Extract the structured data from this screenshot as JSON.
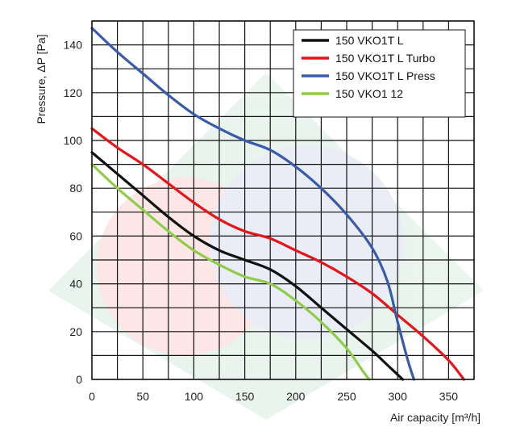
{
  "chart_data": {
    "type": "line",
    "title": "",
    "xlabel": "Air capacity [m³/h]",
    "ylabel": "Pressure, ΔP [Pa]",
    "xlim": [
      0,
      375
    ],
    "ylim": [
      0,
      150
    ],
    "x_ticks": [
      0,
      50,
      100,
      150,
      200,
      250,
      300,
      350
    ],
    "y_ticks": [
      0,
      20,
      40,
      60,
      80,
      100,
      120,
      140
    ],
    "grid": true,
    "legend_position": "top-right",
    "series": [
      {
        "name": "150 VKO1T L",
        "color": "#111111",
        "points": [
          [
            0,
            95
          ],
          [
            25,
            86
          ],
          [
            50,
            77
          ],
          [
            75,
            68
          ],
          [
            100,
            60
          ],
          [
            125,
            54
          ],
          [
            150,
            50
          ],
          [
            175,
            46
          ],
          [
            200,
            39
          ],
          [
            225,
            30
          ],
          [
            250,
            21
          ],
          [
            275,
            12
          ],
          [
            290,
            6
          ],
          [
            305,
            0
          ]
        ]
      },
      {
        "name": "150 VKO1T L Turbo",
        "color": "#e5161b",
        "points": [
          [
            0,
            105
          ],
          [
            25,
            97
          ],
          [
            50,
            90
          ],
          [
            75,
            82
          ],
          [
            100,
            74
          ],
          [
            125,
            67
          ],
          [
            150,
            62
          ],
          [
            175,
            59
          ],
          [
            200,
            54
          ],
          [
            225,
            49
          ],
          [
            250,
            43
          ],
          [
            275,
            36
          ],
          [
            300,
            27
          ],
          [
            325,
            18
          ],
          [
            350,
            8
          ],
          [
            365,
            0
          ]
        ]
      },
      {
        "name": "150 VKO1T L Press",
        "color": "#3a5bab",
        "points": [
          [
            0,
            147
          ],
          [
            25,
            137
          ],
          [
            50,
            128
          ],
          [
            75,
            119
          ],
          [
            100,
            111
          ],
          [
            125,
            105
          ],
          [
            150,
            100
          ],
          [
            175,
            96
          ],
          [
            200,
            89
          ],
          [
            225,
            80
          ],
          [
            250,
            69
          ],
          [
            275,
            55
          ],
          [
            290,
            41
          ],
          [
            300,
            24
          ],
          [
            310,
            8
          ],
          [
            316,
            0
          ]
        ]
      },
      {
        "name": "150 VKO1 12",
        "color": "#8fcc4a",
        "points": [
          [
            0,
            90
          ],
          [
            25,
            80
          ],
          [
            50,
            71
          ],
          [
            75,
            62
          ],
          [
            100,
            54
          ],
          [
            125,
            48
          ],
          [
            150,
            43
          ],
          [
            175,
            40
          ],
          [
            200,
            33
          ],
          [
            225,
            24
          ],
          [
            250,
            13
          ],
          [
            265,
            4
          ],
          [
            272,
            0
          ]
        ]
      }
    ]
  }
}
